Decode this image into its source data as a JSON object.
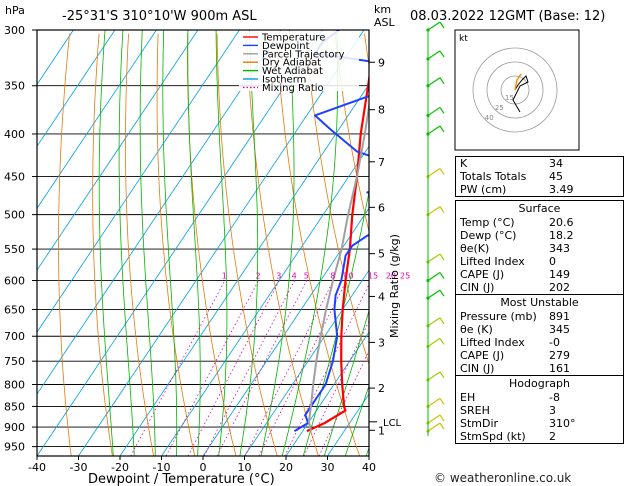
{
  "header": {
    "pressure_unit": "hPa",
    "location": "-25°31'S 310°10'W 900m ASL",
    "km_unit": "km",
    "asl_unit": "ASL",
    "datetime": "08.03.2022 12GMT (Base: 12)"
  },
  "footer": {
    "credit": "© weatheronline.co.uk"
  },
  "legend": [
    {
      "label": "Temperature",
      "color": "#ff0000",
      "dash": "solid"
    },
    {
      "label": "Dewpoint",
      "color": "#1f3fff",
      "dash": "solid"
    },
    {
      "label": "Parcel Trajectory",
      "color": "#a0a0a0",
      "dash": "solid"
    },
    {
      "label": "Dry Adiabat",
      "color": "#e8780a",
      "dash": "solid"
    },
    {
      "label": "Wet Adiabat",
      "color": "#00b400",
      "dash": "solid"
    },
    {
      "label": "Isotherm",
      "color": "#00a0e0",
      "dash": "solid"
    },
    {
      "label": "Mixing Ratio",
      "color": "#e000b0",
      "dash": "dotted"
    }
  ],
  "chart_data": {
    "type": "line",
    "title": "-25°31'S 310°10'W 900m ASL",
    "xlabel": "Dewpoint / Temperature (°C)",
    "ylabel": "hPa",
    "y2label": "Mixing Ratio (g/kg)",
    "xlim": [
      -40,
      40
    ],
    "ylim": [
      975,
      300
    ],
    "x_ticks": [
      "-40",
      "-30",
      "-20",
      "-10",
      "0",
      "10",
      "20",
      "30",
      "40"
    ],
    "y_ticks": [
      "300",
      "350",
      "400",
      "450",
      "500",
      "550",
      "600",
      "650",
      "700",
      "750",
      "800",
      "850",
      "900",
      "950"
    ],
    "km_ticks": [
      {
        "label": "9",
        "p": 328
      },
      {
        "label": "8",
        "p": 374
      },
      {
        "label": "7",
        "p": 432
      },
      {
        "label": "6",
        "p": 490
      },
      {
        "label": "5",
        "p": 557
      },
      {
        "label": "4",
        "p": 627
      },
      {
        "label": "3",
        "p": 712
      },
      {
        "label": "2",
        "p": 808
      },
      {
        "label": "1",
        "p": 908
      }
    ],
    "lcl": {
      "label": "LCL",
      "p": 887
    },
    "mixing_ratio_labels": [
      "1",
      "2",
      "3",
      "4",
      "5",
      "8",
      "10",
      "15",
      "20",
      "25"
    ],
    "series": [
      {
        "name": "Temperature",
        "color": "#ff0000",
        "p": [
          910,
          890,
          860,
          850,
          800,
          750,
          700,
          650,
          600,
          550,
          500,
          450,
          400,
          350,
          300
        ],
        "x": [
          21,
          24,
          27,
          26,
          22,
          18,
          14,
          10,
          6,
          2,
          -3,
          -8,
          -14,
          -20,
          -27
        ]
      },
      {
        "name": "Dewpoint",
        "color": "#1f3fff",
        "p": [
          910,
          890,
          870,
          850,
          800,
          750,
          700,
          650,
          625,
          600,
          560,
          545,
          530,
          515,
          505,
          500,
          490,
          470,
          455,
          450,
          440,
          420,
          395,
          380,
          360,
          345,
          330,
          320,
          310,
          300
        ],
        "x": [
          18,
          20,
          18,
          18,
          18,
          16,
          13,
          8,
          6,
          5,
          2,
          2,
          4,
          8,
          2,
          1,
          6,
          -3,
          6,
          6,
          3,
          -12,
          -22,
          -28,
          -18,
          -6,
          -18,
          -38,
          -38,
          -36
        ]
      },
      {
        "name": "Parcel Trajectory",
        "color": "#a0a0a0",
        "p": [
          910,
          887,
          850,
          800,
          750,
          700,
          650,
          600,
          550,
          500,
          450,
          400,
          350,
          300
        ],
        "x": [
          22,
          20,
          18,
          15,
          12,
          9,
          6,
          3,
          0,
          -4,
          -8,
          -13,
          -19,
          -26
        ]
      }
    ],
    "hodograph": {
      "rings": [
        "15",
        "25",
        "40"
      ],
      "label": "kt"
    }
  },
  "indices": {
    "rows": [
      {
        "label": "K",
        "value": "34"
      },
      {
        "label": "Totals Totals",
        "value": "45"
      },
      {
        "label": "PW (cm)",
        "value": "3.49"
      }
    ],
    "surface": {
      "title": "Surface",
      "rows": [
        {
          "label": "Temp (°C)",
          "value": "20.6"
        },
        {
          "label": "Dewp (°C)",
          "value": "18.2"
        },
        {
          "label": "θe(K)",
          "value": "343"
        },
        {
          "label": "Lifted Index",
          "value": "0"
        },
        {
          "label": "CAPE (J)",
          "value": "149"
        },
        {
          "label": "CIN (J)",
          "value": "202"
        }
      ]
    },
    "most_unstable": {
      "title": "Most Unstable",
      "rows": [
        {
          "label": "Pressure (mb)",
          "value": "891"
        },
        {
          "label": "θe (K)",
          "value": "345"
        },
        {
          "label": "Lifted Index",
          "value": "-0"
        },
        {
          "label": "CAPE (J)",
          "value": "279"
        },
        {
          "label": "CIN (J)",
          "value": "161"
        }
      ]
    },
    "hodograph": {
      "title": "Hodograph",
      "rows": [
        {
          "label": "EH",
          "value": "-8"
        },
        {
          "label": "SREH",
          "value": "3"
        },
        {
          "label": "StmDir",
          "value": "310°"
        },
        {
          "label": "StmSpd (kt)",
          "value": "2"
        }
      ]
    }
  }
}
